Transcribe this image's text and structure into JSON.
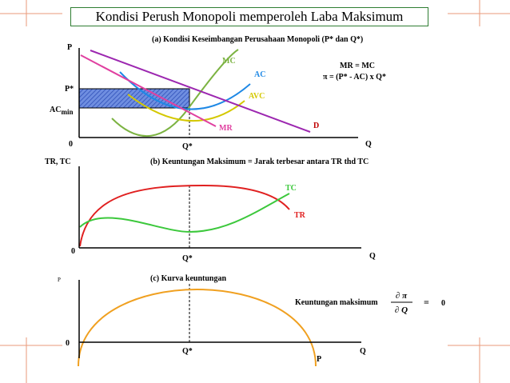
{
  "title": "Kondisi Perush Monopoli memperoleh Laba Maksimum",
  "panel_a": {
    "heading": "(a)  Kondisi  Keseimbangan Perusahaan Monopoli (P* dan Q*)",
    "y_axis_label": "P",
    "x_axis_label": "Q",
    "origin": "0",
    "p_star": "P*",
    "ac_min_main": "AC",
    "ac_min_sub": "min",
    "q_star": "Q*",
    "curves": {
      "mc": "MC",
      "ac": "AC",
      "avc": "AVC",
      "mr": "MR",
      "d": "D"
    },
    "formula_line1": "MR = MC",
    "formula_line2": "π  = (P* - AC) x Q*",
    "colors": {
      "mc": "#7cb342",
      "ac": "#1e88e5",
      "avc": "#d4c800",
      "mr": "#e040a0",
      "d": "#9c27b0",
      "profit_area": "#4a6fd8"
    }
  },
  "panel_b": {
    "heading": "(b) Keuntungan Maksimum =  Jarak terbesar antara TR thd TC",
    "y_axis_label": "TR, TC",
    "x_axis_label": "Q",
    "origin": "0",
    "q_star": "Q*",
    "curves": {
      "tc": "TC",
      "tr": "TR"
    },
    "colors": {
      "tc": "#3cc83c",
      "tr": "#e02020"
    }
  },
  "panel_c": {
    "heading": "(c)  Kurva keuntungan",
    "y_axis_label": "P",
    "x_axis_label": "Q",
    "origin": "0",
    "q_star": "Q*",
    "p_label": "P",
    "max_text": "Keuntungan maksimum",
    "frac_num": "∂ π",
    "frac_den": "∂ Q",
    "equals": "=",
    "zero": "0",
    "colors": {
      "profit_curve": "#f0a020"
    }
  },
  "decor_color": "#ea9a7a"
}
